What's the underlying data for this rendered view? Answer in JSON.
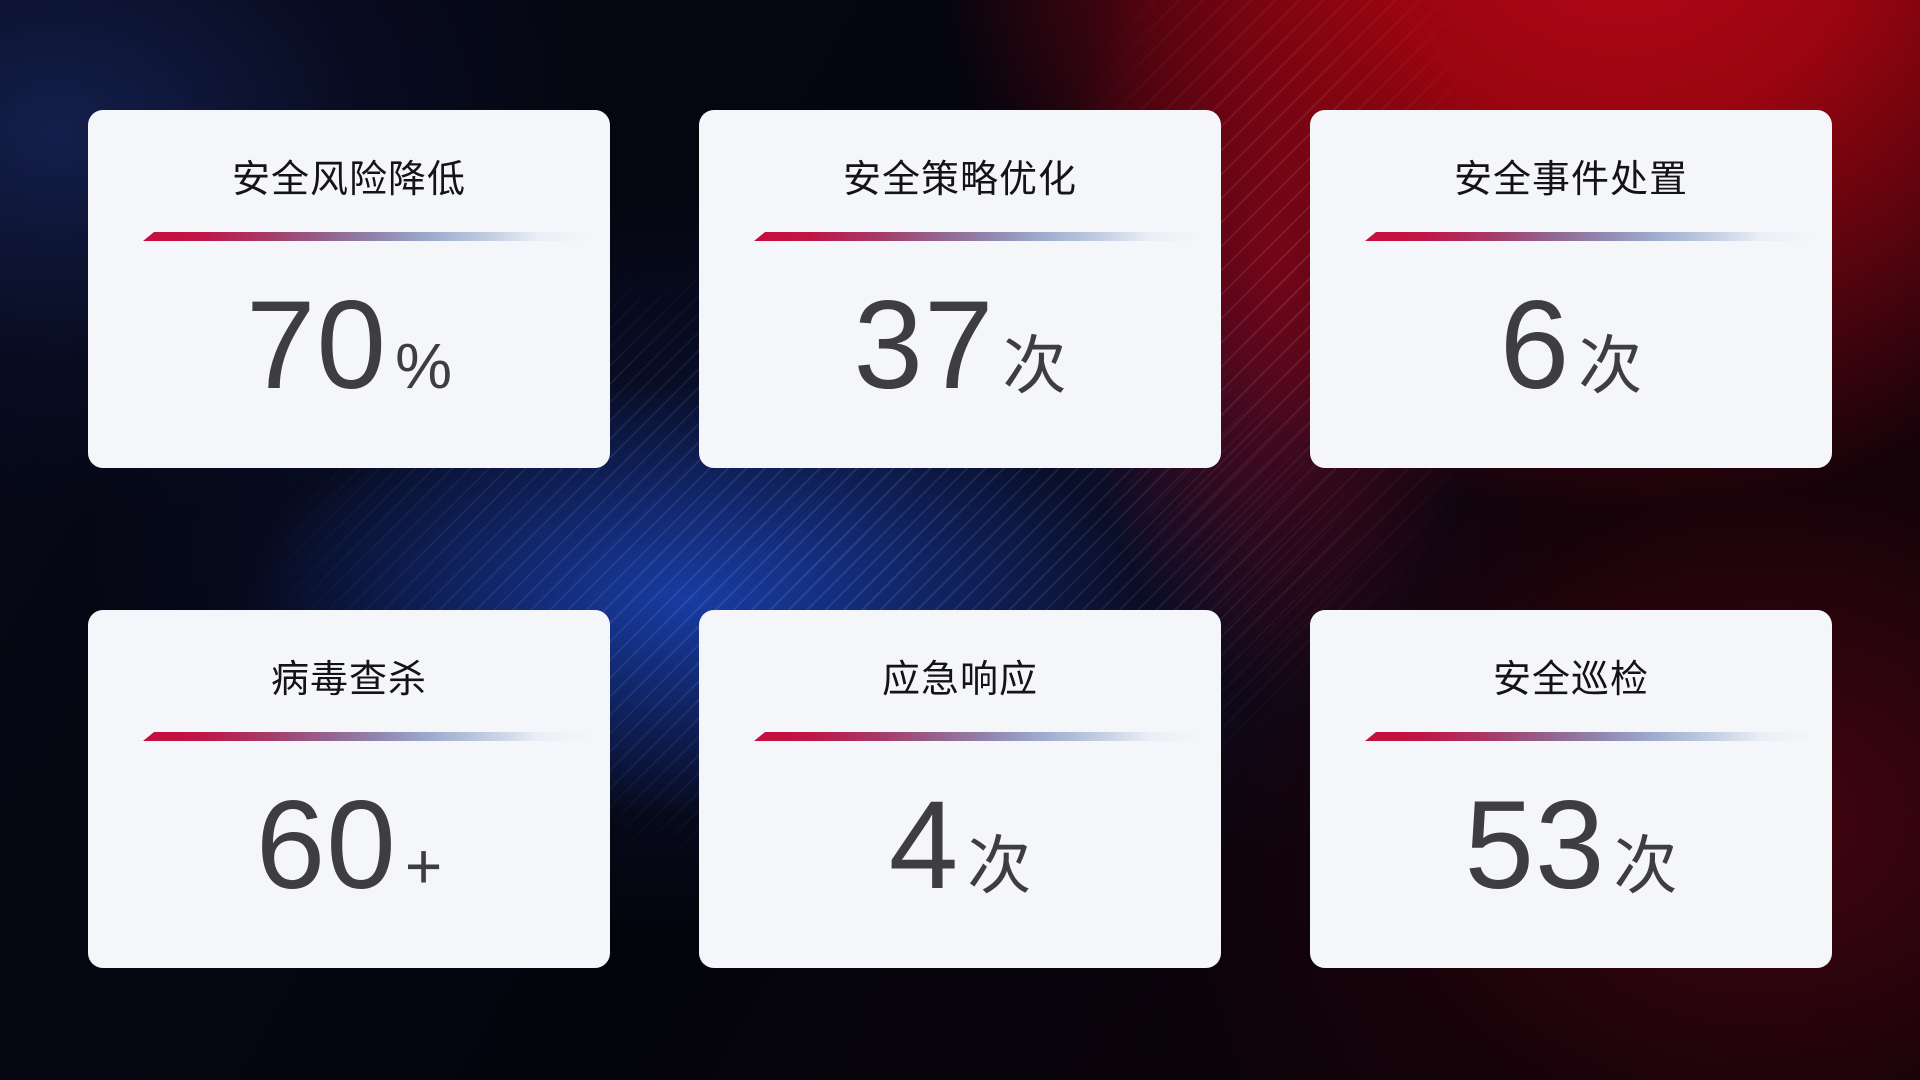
{
  "theme": {
    "card_background": "#f5f6fa",
    "title_color": "#141414",
    "value_color": "#3d3d42",
    "divider_gradient_start": "#c60f3e",
    "divider_gradient_end": "#ccd6e7",
    "background_red": "#b40718",
    "background_blue": "#1c46be",
    "background_base": "#04040c"
  },
  "cards": [
    {
      "title": "安全风险降低",
      "value": "70",
      "unit": "%"
    },
    {
      "title": "安全策略优化",
      "value": "37",
      "unit": "次"
    },
    {
      "title": "安全事件处置",
      "value": "6",
      "unit": "次"
    },
    {
      "title": "病毒查杀",
      "value": "60",
      "unit": "+"
    },
    {
      "title": "应急响应",
      "value": "4",
      "unit": "次"
    },
    {
      "title": "安全巡检",
      "value": "53",
      "unit": "次"
    }
  ]
}
